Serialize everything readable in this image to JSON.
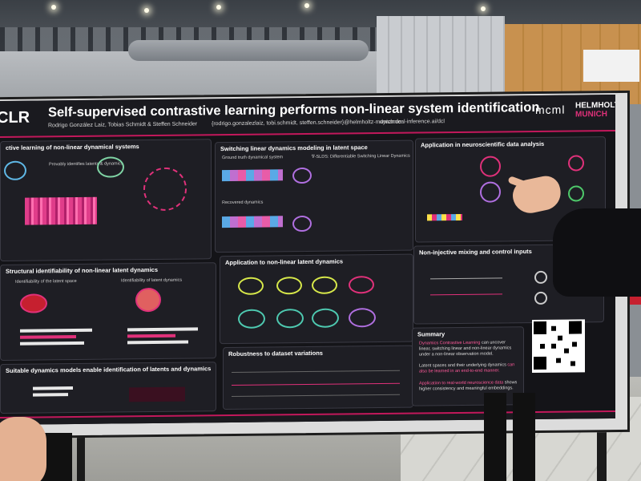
{
  "poster": {
    "logo_left": "CLR",
    "title": "Self-supervised contrastive learning performs non-linear system identification",
    "authors": "Rodrigo González Laiz, Tobias Schmidt & Steffen Schneider",
    "email": "{rodrigo.gonzalezlaiz, tobi.schmidt, steffen.schneider}@helmholtz-munich.de",
    "website": "dynamical-inference.ai/dcl",
    "logo_mcml": "mcml",
    "logo_helmholtz": "HELMHOLTZ",
    "logo_munich": "MUNICH",
    "panels": {
      "p1": "ctive learning of non-linear dynamical systems",
      "p2": "Structural identifiability of non-linear latent dynamics",
      "p3": "Suitable dynamics models enable identification of latents and dynamics",
      "p4": "Switching linear dynamics modeling in latent space",
      "p5": "Application to non-linear latent dynamics",
      "p6": "Robustness to dataset variations",
      "p7": "Application in neuroscientific data analysis",
      "p8": "Non-injective mixing and control inputs",
      "p9": "Summary"
    },
    "subs": {
      "ground_truth": "Ground truth dynamical system",
      "recovered": "Recovered dynamics",
      "dslds": "∇-SLDS: Differentiable Switching Linear Dynamics",
      "provably": "Provably identifies latents & dynamics",
      "latent_space": "Identifiability of the latent space",
      "latent_dyn": "Identifiability of latent dynamics"
    },
    "summary": {
      "s1_highlight": "Dynamics Contrastive Learning",
      "s1_rest": " can uncover linear, switching linear and non-linear dynamics under a non-linear observation model.",
      "s2_plain": "Latent spaces and their underlying dynamics ",
      "s2_highlight": "can also be learned in an end-to-end manner.",
      "s3_highlight": "Application to real-world neuroscience data",
      "s3_rest": " shows higher consistency and meaningful embeddings."
    }
  },
  "colors": {
    "poster_bg": "#141418",
    "accent": "#c2185b",
    "highlight": "#ff5a9a"
  }
}
